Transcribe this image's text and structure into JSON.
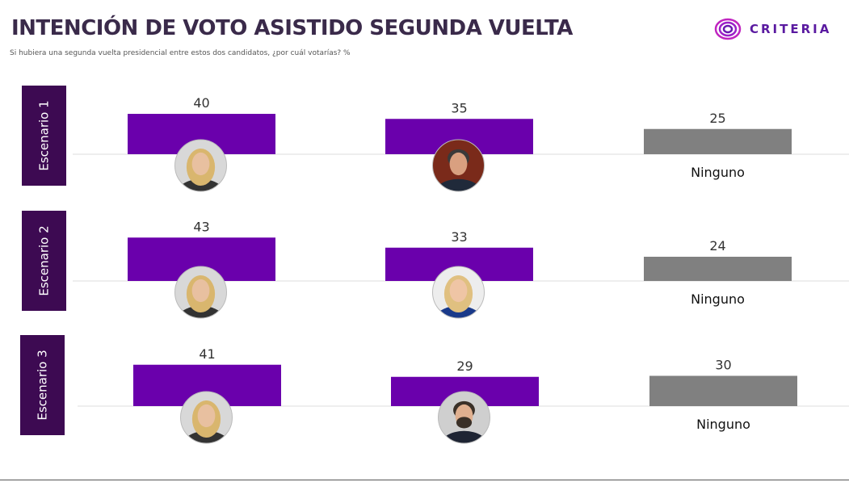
{
  "header": {
    "title": "INTENCIÓN DE VOTO ASISTIDO SEGUNDA VUELTA",
    "subtitle": "Si hubiera una segunda vuelta presidencial entre estos dos candidatos, ¿por cuál votarías? %"
  },
  "logo": {
    "text": "CRITERIA"
  },
  "colors": {
    "candidate": "#6a00ac",
    "ninguno": "#808080",
    "scenario_bg": "#3d0a52",
    "gridline": "#dddddd"
  },
  "chart_data": {
    "type": "bar",
    "ylim": [
      0,
      50
    ],
    "scenarios": [
      {
        "label": "Escenario 1",
        "categories": [
          "",
          "",
          "Ninguno"
        ],
        "values": [
          40,
          35,
          25
        ],
        "photos": [
          "candidate-blonde-woman",
          "candidate-man-suit",
          null
        ]
      },
      {
        "label": "Escenario 2",
        "categories": [
          "",
          "",
          "Ninguno"
        ],
        "values": [
          43,
          33,
          24
        ],
        "photos": [
          "candidate-blonde-woman",
          "candidate-blonde-woman-2",
          null
        ]
      },
      {
        "label": "Escenario 3",
        "categories": [
          "",
          "",
          "Ninguno"
        ],
        "values": [
          41,
          29,
          30
        ],
        "photos": [
          "candidate-blonde-woman",
          "candidate-man-beard",
          null
        ]
      }
    ]
  }
}
